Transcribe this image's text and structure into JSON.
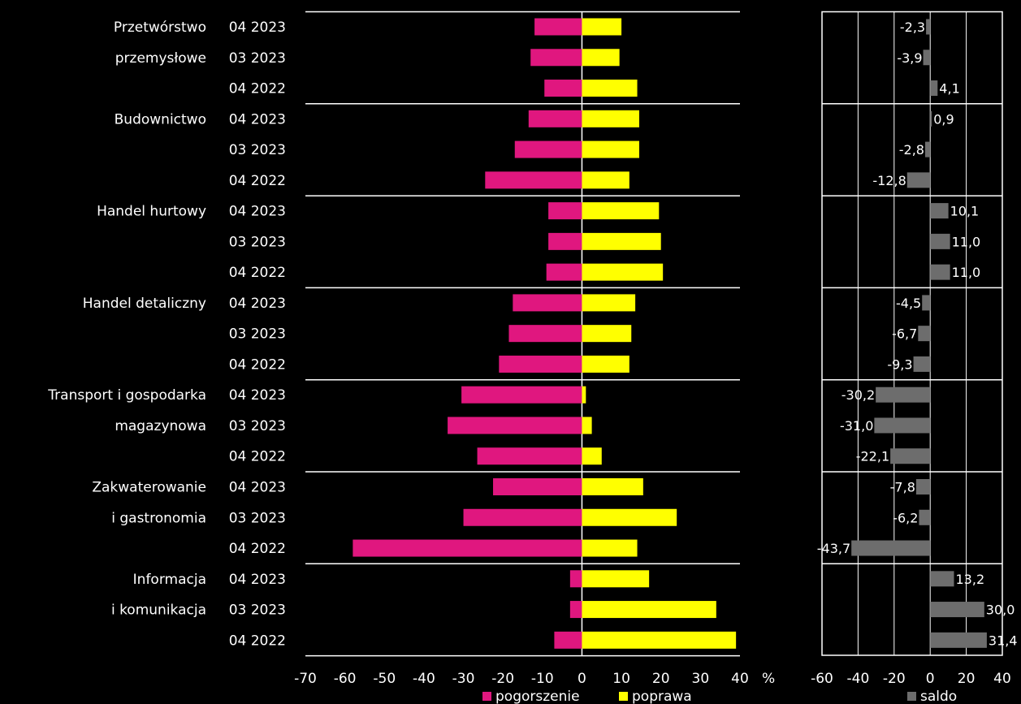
{
  "chart_data": [
    {
      "type": "bar",
      "orientation": "horizontal",
      "groups": [
        {
          "label_lines": [
            "Przetwórstwo",
            "przemysłowe"
          ],
          "periods": [
            "04 2023",
            "03 2023",
            "04 2022"
          ]
        },
        {
          "label_lines": [
            "Budownictwo"
          ],
          "periods": [
            "04 2023",
            "03 2023",
            "04 2022"
          ]
        },
        {
          "label_lines": [
            "Handel hurtowy"
          ],
          "periods": [
            "04 2023",
            "03 2023",
            "04 2022"
          ]
        },
        {
          "label_lines": [
            "Handel detaliczny"
          ],
          "periods": [
            "04 2023",
            "03 2023",
            "04 2022"
          ]
        },
        {
          "label_lines": [
            "Transport i gospodarka",
            "magazynowa"
          ],
          "periods": [
            "04 2023",
            "03 2023",
            "04 2022"
          ]
        },
        {
          "label_lines": [
            "Zakwaterowanie",
            "i gastronomia"
          ],
          "periods": [
            "04 2023",
            "03 2023",
            "04 2022"
          ]
        },
        {
          "label_lines": [
            "Informacja",
            "i komunikacja"
          ],
          "periods": [
            "04 2023",
            "03 2023",
            "04 2022"
          ]
        }
      ],
      "series": [
        {
          "name": "pogorszenie",
          "color": "#e0177f",
          "values": [
            -12,
            -13,
            -9.5,
            -13.5,
            -17,
            -24.5,
            -8.5,
            -8.5,
            -9,
            -17.5,
            -18.5,
            -21,
            -30.5,
            -34,
            -26.5,
            -22.5,
            -30,
            -58,
            -3,
            -3,
            -7
          ]
        },
        {
          "name": "poprawa",
          "color": "#ffff00",
          "values": [
            10,
            9.5,
            14,
            14.5,
            14.5,
            12,
            19.5,
            20,
            20.5,
            13.5,
            12.5,
            12,
            1,
            2.5,
            5,
            15.5,
            24,
            14,
            17,
            34,
            39
          ]
        }
      ],
      "xlim": [
        -70,
        40
      ],
      "xticks": [
        "-70",
        "-60",
        "-50",
        "-40",
        "-30",
        "-20",
        "-10",
        "0",
        "10",
        "20",
        "30",
        "40"
      ],
      "unit": "%"
    },
    {
      "type": "bar",
      "orientation": "horizontal",
      "series": [
        {
          "name": "saldo",
          "color": "#6d6d6d",
          "values": [
            -2.3,
            -3.9,
            4.1,
            0.9,
            -2.8,
            -12.8,
            10.1,
            11.0,
            11.0,
            -4.5,
            -6.7,
            -9.3,
            -30.2,
            -31.0,
            -22.1,
            -7.8,
            -6.2,
            -43.7,
            13.2,
            30.0,
            31.4
          ],
          "labels": [
            "-2,3",
            "-3,9",
            "4,1",
            "0,9",
            "-2,8",
            "-12,8",
            "10,1",
            "11,0",
            "11,0",
            "-4,5",
            "-6,7",
            "-9,3",
            "-30,2",
            "-31,0",
            "-22,1",
            "-7,8",
            "-6,2",
            "-43,7",
            "13,2",
            "30,0",
            "31,4"
          ]
        }
      ],
      "xlim": [
        -60,
        40
      ],
      "xticks": [
        "-60",
        "-40",
        "-20",
        "0",
        "20",
        "40"
      ],
      "grid": true
    }
  ]
}
